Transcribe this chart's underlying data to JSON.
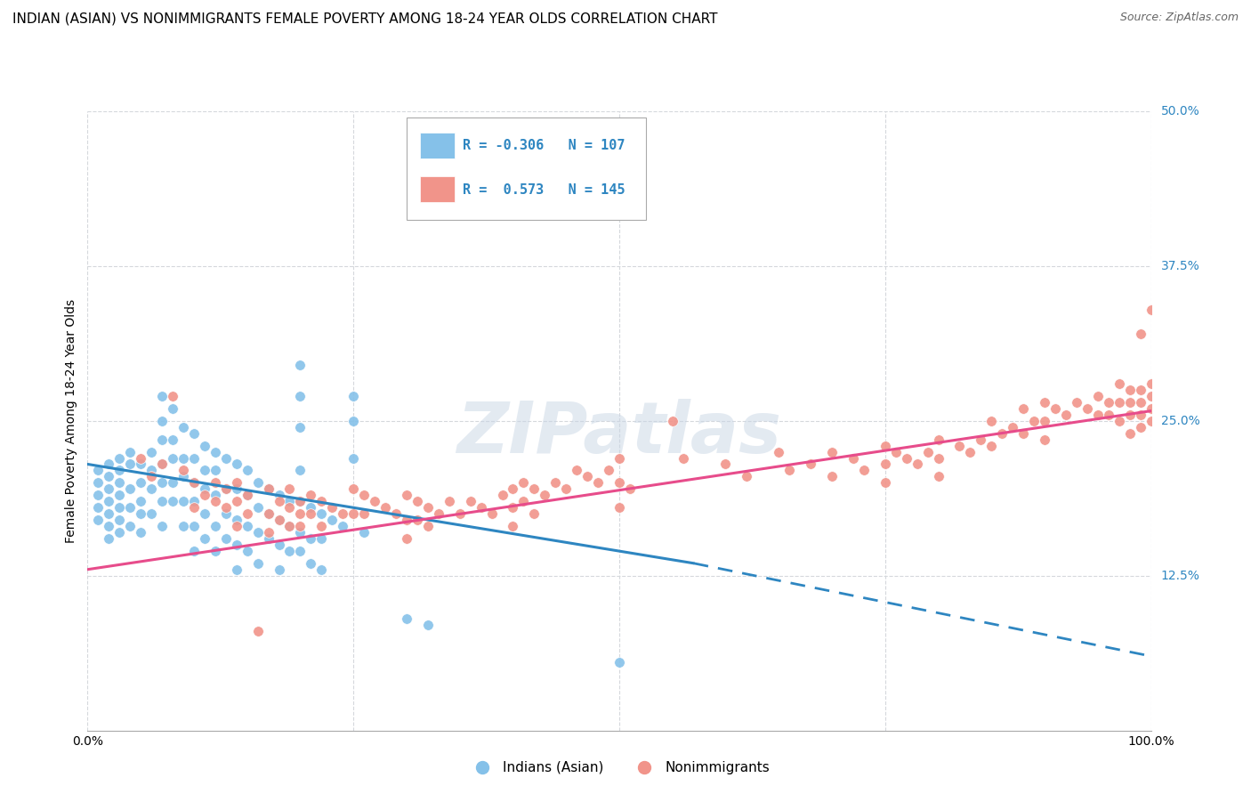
{
  "title": "INDIAN (ASIAN) VS NONIMMIGRANTS FEMALE POVERTY AMONG 18-24 YEAR OLDS CORRELATION CHART",
  "source": "Source: ZipAtlas.com",
  "ylabel": "Female Poverty Among 18-24 Year Olds",
  "xlim": [
    0,
    1.0
  ],
  "ylim": [
    0,
    0.5
  ],
  "yticks": [
    0.125,
    0.25,
    0.375,
    0.5
  ],
  "ytick_labels": [
    "12.5%",
    "25.0%",
    "37.5%",
    "50.0%"
  ],
  "xtick_labels_show": [
    "0.0%",
    "100.0%"
  ],
  "xtick_positions_show": [
    0.0,
    1.0
  ],
  "xtick_positions_grid": [
    0.0,
    0.25,
    0.5,
    0.75,
    1.0
  ],
  "color_blue": "#85c1e9",
  "color_pink": "#f1948a",
  "color_blue_line": "#2e86c1",
  "color_pink_line": "#e74c8b",
  "trendline_blue_solid": [
    [
      0.0,
      0.215
    ],
    [
      0.57,
      0.135
    ]
  ],
  "trendline_blue_dashed": [
    [
      0.57,
      0.135
    ],
    [
      1.0,
      0.06
    ]
  ],
  "trendline_pink": [
    [
      0.0,
      0.13
    ],
    [
      1.0,
      0.258
    ]
  ],
  "watermark": "ZIPatlas",
  "background_color": "#ffffff",
  "grid_color": "#d5d8dc",
  "title_fontsize": 11,
  "axis_label_fontsize": 10,
  "tick_fontsize": 10,
  "blue_points": [
    [
      0.01,
      0.21
    ],
    [
      0.01,
      0.2
    ],
    [
      0.01,
      0.19
    ],
    [
      0.01,
      0.18
    ],
    [
      0.01,
      0.17
    ],
    [
      0.02,
      0.215
    ],
    [
      0.02,
      0.205
    ],
    [
      0.02,
      0.195
    ],
    [
      0.02,
      0.185
    ],
    [
      0.02,
      0.175
    ],
    [
      0.02,
      0.165
    ],
    [
      0.02,
      0.155
    ],
    [
      0.03,
      0.22
    ],
    [
      0.03,
      0.21
    ],
    [
      0.03,
      0.2
    ],
    [
      0.03,
      0.19
    ],
    [
      0.03,
      0.18
    ],
    [
      0.03,
      0.17
    ],
    [
      0.03,
      0.16
    ],
    [
      0.04,
      0.225
    ],
    [
      0.04,
      0.215
    ],
    [
      0.04,
      0.195
    ],
    [
      0.04,
      0.18
    ],
    [
      0.04,
      0.165
    ],
    [
      0.05,
      0.215
    ],
    [
      0.05,
      0.2
    ],
    [
      0.05,
      0.185
    ],
    [
      0.05,
      0.175
    ],
    [
      0.05,
      0.16
    ],
    [
      0.06,
      0.225
    ],
    [
      0.06,
      0.21
    ],
    [
      0.06,
      0.195
    ],
    [
      0.06,
      0.175
    ],
    [
      0.07,
      0.27
    ],
    [
      0.07,
      0.25
    ],
    [
      0.07,
      0.235
    ],
    [
      0.07,
      0.215
    ],
    [
      0.07,
      0.2
    ],
    [
      0.07,
      0.185
    ],
    [
      0.07,
      0.165
    ],
    [
      0.08,
      0.26
    ],
    [
      0.08,
      0.235
    ],
    [
      0.08,
      0.22
    ],
    [
      0.08,
      0.2
    ],
    [
      0.08,
      0.185
    ],
    [
      0.09,
      0.245
    ],
    [
      0.09,
      0.22
    ],
    [
      0.09,
      0.205
    ],
    [
      0.09,
      0.185
    ],
    [
      0.09,
      0.165
    ],
    [
      0.1,
      0.24
    ],
    [
      0.1,
      0.22
    ],
    [
      0.1,
      0.2
    ],
    [
      0.1,
      0.185
    ],
    [
      0.1,
      0.165
    ],
    [
      0.1,
      0.145
    ],
    [
      0.11,
      0.23
    ],
    [
      0.11,
      0.21
    ],
    [
      0.11,
      0.195
    ],
    [
      0.11,
      0.175
    ],
    [
      0.11,
      0.155
    ],
    [
      0.12,
      0.225
    ],
    [
      0.12,
      0.21
    ],
    [
      0.12,
      0.19
    ],
    [
      0.12,
      0.165
    ],
    [
      0.12,
      0.145
    ],
    [
      0.13,
      0.22
    ],
    [
      0.13,
      0.195
    ],
    [
      0.13,
      0.175
    ],
    [
      0.13,
      0.155
    ],
    [
      0.14,
      0.215
    ],
    [
      0.14,
      0.195
    ],
    [
      0.14,
      0.17
    ],
    [
      0.14,
      0.15
    ],
    [
      0.14,
      0.13
    ],
    [
      0.15,
      0.21
    ],
    [
      0.15,
      0.19
    ],
    [
      0.15,
      0.165
    ],
    [
      0.15,
      0.145
    ],
    [
      0.16,
      0.2
    ],
    [
      0.16,
      0.18
    ],
    [
      0.16,
      0.16
    ],
    [
      0.16,
      0.135
    ],
    [
      0.17,
      0.195
    ],
    [
      0.17,
      0.175
    ],
    [
      0.17,
      0.155
    ],
    [
      0.18,
      0.19
    ],
    [
      0.18,
      0.17
    ],
    [
      0.18,
      0.15
    ],
    [
      0.18,
      0.13
    ],
    [
      0.19,
      0.185
    ],
    [
      0.19,
      0.165
    ],
    [
      0.19,
      0.145
    ],
    [
      0.2,
      0.295
    ],
    [
      0.2,
      0.27
    ],
    [
      0.2,
      0.245
    ],
    [
      0.2,
      0.21
    ],
    [
      0.2,
      0.185
    ],
    [
      0.2,
      0.16
    ],
    [
      0.2,
      0.145
    ],
    [
      0.21,
      0.18
    ],
    [
      0.21,
      0.155
    ],
    [
      0.21,
      0.135
    ],
    [
      0.22,
      0.175
    ],
    [
      0.22,
      0.155
    ],
    [
      0.22,
      0.13
    ],
    [
      0.23,
      0.17
    ],
    [
      0.24,
      0.165
    ],
    [
      0.25,
      0.27
    ],
    [
      0.25,
      0.25
    ],
    [
      0.25,
      0.22
    ],
    [
      0.26,
      0.16
    ],
    [
      0.3,
      0.09
    ],
    [
      0.32,
      0.085
    ],
    [
      0.5,
      0.055
    ]
  ],
  "pink_points": [
    [
      0.05,
      0.22
    ],
    [
      0.06,
      0.205
    ],
    [
      0.07,
      0.215
    ],
    [
      0.08,
      0.27
    ],
    [
      0.09,
      0.21
    ],
    [
      0.1,
      0.2
    ],
    [
      0.1,
      0.18
    ],
    [
      0.11,
      0.19
    ],
    [
      0.12,
      0.2
    ],
    [
      0.12,
      0.185
    ],
    [
      0.13,
      0.195
    ],
    [
      0.13,
      0.18
    ],
    [
      0.14,
      0.2
    ],
    [
      0.14,
      0.185
    ],
    [
      0.14,
      0.165
    ],
    [
      0.15,
      0.19
    ],
    [
      0.15,
      0.175
    ],
    [
      0.16,
      0.08
    ],
    [
      0.17,
      0.195
    ],
    [
      0.17,
      0.175
    ],
    [
      0.17,
      0.16
    ],
    [
      0.18,
      0.185
    ],
    [
      0.18,
      0.17
    ],
    [
      0.19,
      0.195
    ],
    [
      0.19,
      0.18
    ],
    [
      0.19,
      0.165
    ],
    [
      0.2,
      0.185
    ],
    [
      0.2,
      0.175
    ],
    [
      0.2,
      0.165
    ],
    [
      0.21,
      0.19
    ],
    [
      0.21,
      0.175
    ],
    [
      0.22,
      0.185
    ],
    [
      0.22,
      0.165
    ],
    [
      0.23,
      0.18
    ],
    [
      0.24,
      0.175
    ],
    [
      0.25,
      0.195
    ],
    [
      0.25,
      0.175
    ],
    [
      0.26,
      0.19
    ],
    [
      0.26,
      0.175
    ],
    [
      0.27,
      0.185
    ],
    [
      0.28,
      0.18
    ],
    [
      0.29,
      0.175
    ],
    [
      0.3,
      0.19
    ],
    [
      0.3,
      0.17
    ],
    [
      0.3,
      0.155
    ],
    [
      0.31,
      0.185
    ],
    [
      0.31,
      0.17
    ],
    [
      0.32,
      0.18
    ],
    [
      0.32,
      0.165
    ],
    [
      0.33,
      0.175
    ],
    [
      0.34,
      0.185
    ],
    [
      0.35,
      0.175
    ],
    [
      0.36,
      0.185
    ],
    [
      0.37,
      0.18
    ],
    [
      0.38,
      0.175
    ],
    [
      0.39,
      0.19
    ],
    [
      0.4,
      0.195
    ],
    [
      0.4,
      0.18
    ],
    [
      0.4,
      0.165
    ],
    [
      0.41,
      0.2
    ],
    [
      0.41,
      0.185
    ],
    [
      0.42,
      0.195
    ],
    [
      0.42,
      0.175
    ],
    [
      0.43,
      0.19
    ],
    [
      0.44,
      0.2
    ],
    [
      0.45,
      0.195
    ],
    [
      0.46,
      0.21
    ],
    [
      0.47,
      0.205
    ],
    [
      0.48,
      0.2
    ],
    [
      0.49,
      0.21
    ],
    [
      0.5,
      0.22
    ],
    [
      0.5,
      0.2
    ],
    [
      0.5,
      0.18
    ],
    [
      0.51,
      0.195
    ],
    [
      0.55,
      0.25
    ],
    [
      0.56,
      0.22
    ],
    [
      0.6,
      0.215
    ],
    [
      0.62,
      0.205
    ],
    [
      0.65,
      0.225
    ],
    [
      0.66,
      0.21
    ],
    [
      0.68,
      0.215
    ],
    [
      0.7,
      0.225
    ],
    [
      0.7,
      0.205
    ],
    [
      0.72,
      0.22
    ],
    [
      0.73,
      0.21
    ],
    [
      0.75,
      0.23
    ],
    [
      0.75,
      0.215
    ],
    [
      0.75,
      0.2
    ],
    [
      0.76,
      0.225
    ],
    [
      0.77,
      0.22
    ],
    [
      0.78,
      0.215
    ],
    [
      0.79,
      0.225
    ],
    [
      0.8,
      0.235
    ],
    [
      0.8,
      0.22
    ],
    [
      0.8,
      0.205
    ],
    [
      0.82,
      0.23
    ],
    [
      0.83,
      0.225
    ],
    [
      0.84,
      0.235
    ],
    [
      0.85,
      0.25
    ],
    [
      0.85,
      0.23
    ],
    [
      0.86,
      0.24
    ],
    [
      0.87,
      0.245
    ],
    [
      0.88,
      0.26
    ],
    [
      0.88,
      0.24
    ],
    [
      0.89,
      0.25
    ],
    [
      0.9,
      0.265
    ],
    [
      0.9,
      0.25
    ],
    [
      0.9,
      0.235
    ],
    [
      0.91,
      0.26
    ],
    [
      0.92,
      0.255
    ],
    [
      0.93,
      0.265
    ],
    [
      0.94,
      0.26
    ],
    [
      0.95,
      0.27
    ],
    [
      0.95,
      0.255
    ],
    [
      0.96,
      0.265
    ],
    [
      0.96,
      0.255
    ],
    [
      0.97,
      0.28
    ],
    [
      0.97,
      0.265
    ],
    [
      0.97,
      0.25
    ],
    [
      0.98,
      0.275
    ],
    [
      0.98,
      0.265
    ],
    [
      0.98,
      0.255
    ],
    [
      0.98,
      0.24
    ],
    [
      0.99,
      0.32
    ],
    [
      0.99,
      0.275
    ],
    [
      0.99,
      0.265
    ],
    [
      0.99,
      0.255
    ],
    [
      0.99,
      0.245
    ],
    [
      1.0,
      0.34
    ],
    [
      1.0,
      0.28
    ],
    [
      1.0,
      0.27
    ],
    [
      1.0,
      0.26
    ],
    [
      1.0,
      0.25
    ]
  ]
}
